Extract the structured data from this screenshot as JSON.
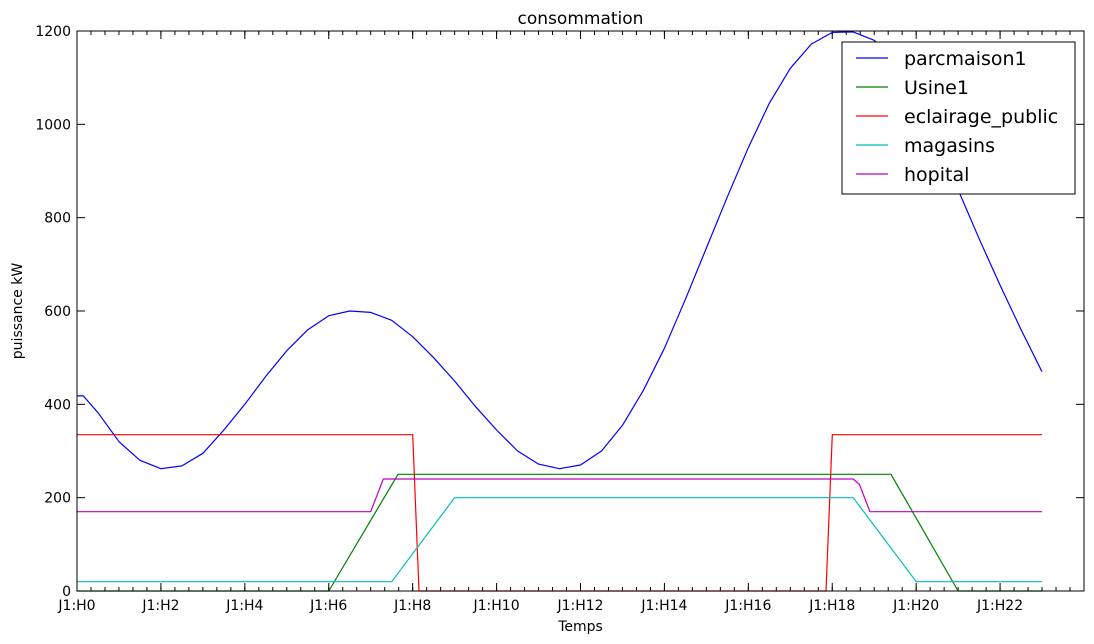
{
  "chart_data": {
    "type": "line",
    "title": "consommation",
    "xlabel": "Temps",
    "ylabel": "puissance kW",
    "xlim": [
      0,
      24
    ],
    "ylim": [
      0,
      1200
    ],
    "x_ticks": [
      {
        "value": 0,
        "label": "J1:H0"
      },
      {
        "value": 2,
        "label": "J1:H2"
      },
      {
        "value": 4,
        "label": "J1:H4"
      },
      {
        "value": 6,
        "label": "J1:H6"
      },
      {
        "value": 8,
        "label": "J1:H8"
      },
      {
        "value": 10,
        "label": "J1:H10"
      },
      {
        "value": 12,
        "label": "J1:H12"
      },
      {
        "value": 14,
        "label": "J1:H14"
      },
      {
        "value": 16,
        "label": "J1:H16"
      },
      {
        "value": 18,
        "label": "J1:H18"
      },
      {
        "value": 20,
        "label": "J1:H20"
      },
      {
        "value": 22,
        "label": "J1:H22"
      }
    ],
    "y_ticks": [
      0,
      200,
      400,
      600,
      800,
      1000,
      1200
    ],
    "grid": false,
    "legend_position": "top-right",
    "series": [
      {
        "name": "parcmaison1",
        "color": "#0000ff",
        "points": [
          [
            0.0,
            418
          ],
          [
            0.15,
            418
          ],
          [
            0.5,
            382
          ],
          [
            1.0,
            320
          ],
          [
            1.5,
            280
          ],
          [
            2.0,
            262
          ],
          [
            2.5,
            268
          ],
          [
            3.0,
            295
          ],
          [
            3.5,
            345
          ],
          [
            4.0,
            400
          ],
          [
            4.5,
            460
          ],
          [
            5.0,
            515
          ],
          [
            5.5,
            560
          ],
          [
            6.0,
            590
          ],
          [
            6.5,
            600
          ],
          [
            7.0,
            597
          ],
          [
            7.5,
            580
          ],
          [
            8.0,
            545
          ],
          [
            8.5,
            500
          ],
          [
            9.0,
            450
          ],
          [
            9.5,
            395
          ],
          [
            10.0,
            345
          ],
          [
            10.5,
            300
          ],
          [
            11.0,
            272
          ],
          [
            11.5,
            262
          ],
          [
            12.0,
            270
          ],
          [
            12.5,
            300
          ],
          [
            13.0,
            355
          ],
          [
            13.5,
            430
          ],
          [
            14.0,
            520
          ],
          [
            14.5,
            625
          ],
          [
            15.0,
            735
          ],
          [
            15.5,
            845
          ],
          [
            16.0,
            950
          ],
          [
            16.5,
            1045
          ],
          [
            17.0,
            1120
          ],
          [
            17.5,
            1172
          ],
          [
            18.0,
            1197
          ],
          [
            18.5,
            1198
          ],
          [
            19.0,
            1180
          ],
          [
            19.5,
            1135
          ],
          [
            20.0,
            1060
          ],
          [
            20.5,
            960
          ],
          [
            21.0,
            860
          ],
          [
            21.5,
            755
          ],
          [
            22.0,
            655
          ],
          [
            22.5,
            560
          ],
          [
            23.0,
            470
          ]
        ]
      },
      {
        "name": "Usine1",
        "color": "#008000",
        "points": [
          [
            0.0,
            0
          ],
          [
            6.0,
            0
          ],
          [
            7.65,
            250
          ],
          [
            19.4,
            250
          ],
          [
            21.0,
            0
          ],
          [
            23.0,
            0
          ]
        ]
      },
      {
        "name": "eclairage_public",
        "color": "#ff0000",
        "points": [
          [
            0.0,
            335
          ],
          [
            8.0,
            335
          ],
          [
            8.15,
            0
          ],
          [
            17.85,
            0
          ],
          [
            18.0,
            335
          ],
          [
            23.0,
            335
          ]
        ]
      },
      {
        "name": "magasins",
        "color": "#00bfbf",
        "points": [
          [
            0.0,
            20
          ],
          [
            7.5,
            20
          ],
          [
            9.0,
            200
          ],
          [
            18.5,
            200
          ],
          [
            20.0,
            20
          ],
          [
            23.0,
            20
          ]
        ]
      },
      {
        "name": "hopital",
        "color": "#bf00bf",
        "points": [
          [
            0.0,
            170
          ],
          [
            7.0,
            170
          ],
          [
            7.3,
            240
          ],
          [
            18.5,
            240
          ],
          [
            18.65,
            228
          ],
          [
            18.9,
            170
          ],
          [
            23.0,
            170
          ]
        ]
      }
    ]
  }
}
